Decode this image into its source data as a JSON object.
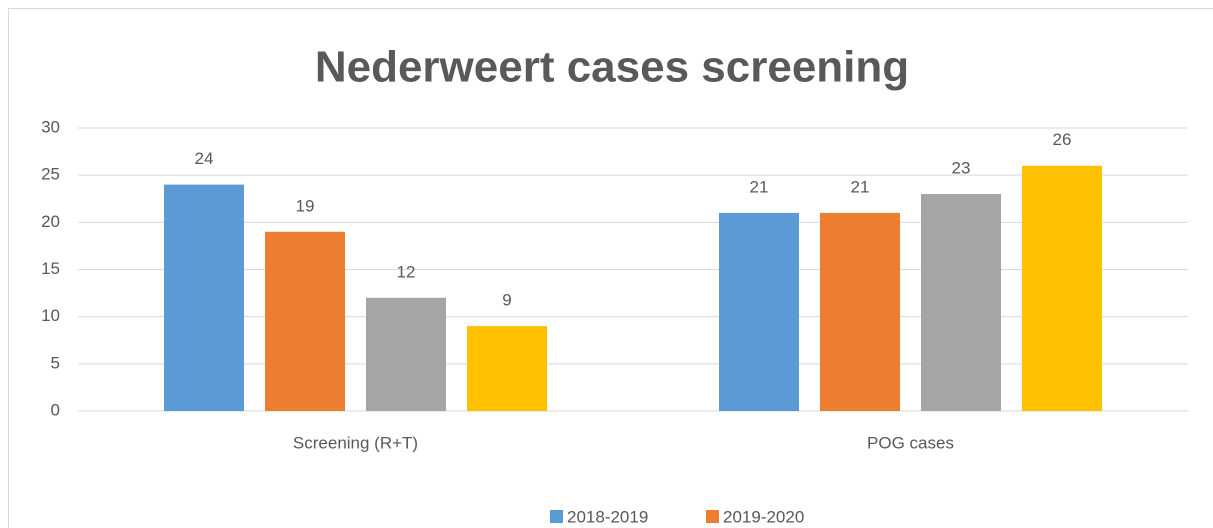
{
  "chart_data": {
    "type": "bar",
    "title": "Nederweert cases screening",
    "categories": [
      "Screening (R+T)",
      "POG cases"
    ],
    "series": [
      {
        "name": "2018-2019",
        "color": "#5b9bd5",
        "values": [
          24,
          21
        ]
      },
      {
        "name": "2019-2020",
        "color": "#ed7d31",
        "values": [
          19,
          21
        ]
      },
      {
        "color": "#a5a5a5",
        "values": [
          12,
          23
        ]
      },
      {
        "color": "#ffc000",
        "values": [
          9,
          26
        ]
      }
    ],
    "ylim": [
      0,
      30
    ],
    "yticks": [
      0,
      5,
      10,
      15,
      20,
      25,
      30
    ],
    "grid": true,
    "legend": "bottom"
  }
}
